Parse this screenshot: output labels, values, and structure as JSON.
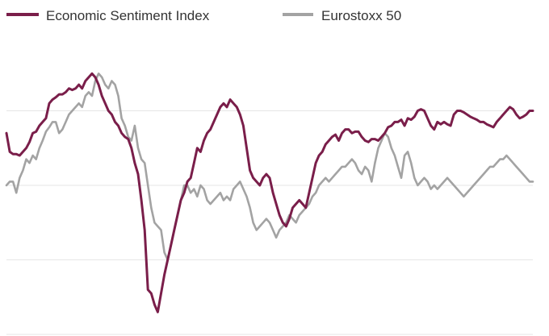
{
  "chart_data": {
    "type": "line",
    "title": "",
    "xlabel": "",
    "ylabel": "",
    "grid": true,
    "legend_position": "top-left",
    "ylim": [
      0,
      4
    ],
    "y_gridlines": [
      0,
      1,
      2,
      3
    ],
    "series": [
      {
        "name": "Economic Sentiment Index",
        "color": "#7a1e4a",
        "x": [
          0,
          1,
          2,
          3,
          4,
          5,
          6,
          7,
          8,
          9,
          10,
          11,
          12,
          13,
          14,
          15,
          16,
          17,
          18,
          19,
          20,
          21,
          22,
          23,
          24,
          25,
          26,
          27,
          28,
          29,
          30,
          31,
          32,
          33,
          34,
          35,
          36,
          37,
          38,
          39,
          40,
          41,
          42,
          43,
          44,
          45,
          46,
          47,
          48,
          49,
          50,
          51,
          52,
          53,
          54,
          55,
          56,
          57,
          58,
          59,
          60,
          61,
          62,
          63,
          64,
          65,
          66,
          67,
          68,
          69,
          70,
          71,
          72,
          73,
          74,
          75,
          76,
          77,
          78,
          79,
          80,
          81,
          82,
          83,
          84,
          85,
          86,
          87,
          88,
          89,
          90,
          91,
          92,
          93,
          94,
          95,
          96,
          97,
          98,
          99,
          100,
          101,
          102,
          103,
          104,
          105,
          106,
          107,
          108,
          109,
          110,
          111,
          112,
          113,
          114,
          115,
          116,
          117,
          118,
          119,
          120,
          121,
          122,
          123,
          124,
          125,
          126,
          127,
          128,
          129,
          130,
          131,
          132,
          133,
          134,
          135,
          136,
          137,
          138,
          139,
          140,
          141,
          142,
          143,
          144,
          145,
          146,
          147,
          148,
          149,
          150,
          151,
          152,
          153,
          154,
          155,
          156,
          157,
          158,
          159,
          160
        ],
        "values": [
          2.7,
          2.45,
          2.42,
          2.42,
          2.4,
          2.45,
          2.5,
          2.58,
          2.7,
          2.72,
          2.8,
          2.85,
          2.9,
          3.1,
          3.15,
          3.18,
          3.22,
          3.22,
          3.25,
          3.3,
          3.28,
          3.3,
          3.35,
          3.3,
          3.4,
          3.45,
          3.5,
          3.45,
          3.35,
          3.2,
          3.1,
          3.0,
          2.95,
          2.85,
          2.8,
          2.7,
          2.65,
          2.62,
          2.5,
          2.3,
          2.15,
          1.8,
          1.4,
          0.6,
          0.55,
          0.4,
          0.3,
          0.55,
          0.8,
          1.0,
          1.2,
          1.4,
          1.6,
          1.8,
          1.9,
          2.05,
          2.1,
          2.3,
          2.5,
          2.45,
          2.6,
          2.7,
          2.75,
          2.85,
          2.95,
          3.05,
          3.1,
          3.05,
          3.15,
          3.1,
          3.05,
          2.95,
          2.8,
          2.5,
          2.2,
          2.1,
          2.05,
          2.0,
          2.1,
          2.15,
          2.1,
          1.9,
          1.75,
          1.6,
          1.5,
          1.45,
          1.55,
          1.7,
          1.75,
          1.8,
          1.75,
          1.7,
          1.9,
          2.1,
          2.3,
          2.4,
          2.45,
          2.55,
          2.6,
          2.65,
          2.68,
          2.6,
          2.7,
          2.75,
          2.75,
          2.7,
          2.72,
          2.72,
          2.65,
          2.6,
          2.58,
          2.62,
          2.62,
          2.6,
          2.65,
          2.7,
          2.78,
          2.8,
          2.85,
          2.85,
          2.88,
          2.8,
          2.9,
          2.88,
          2.92,
          3.0,
          3.02,
          3.0,
          2.9,
          2.8,
          2.75,
          2.85,
          2.82,
          2.85,
          2.82,
          2.8,
          2.95,
          3.0,
          3.0,
          2.98,
          2.95,
          2.92,
          2.9,
          2.88,
          2.85,
          2.85,
          2.82,
          2.8,
          2.78,
          2.85,
          2.9,
          2.95,
          3.0,
          3.05,
          3.02,
          2.95,
          2.9,
          2.92,
          2.95,
          3.0,
          3.0
        ]
      },
      {
        "name": "Eurostoxx 50",
        "color": "#a3a3a3",
        "x": [
          0,
          1,
          2,
          3,
          4,
          5,
          6,
          7,
          8,
          9,
          10,
          11,
          12,
          13,
          14,
          15,
          16,
          17,
          18,
          19,
          20,
          21,
          22,
          23,
          24,
          25,
          26,
          27,
          28,
          29,
          30,
          31,
          32,
          33,
          34,
          35,
          36,
          37,
          38,
          39,
          40,
          41,
          42,
          43,
          44,
          45,
          46,
          47,
          48,
          49,
          50,
          51,
          52,
          53,
          54,
          55,
          56,
          57,
          58,
          59,
          60,
          61,
          62,
          63,
          64,
          65,
          66,
          67,
          68,
          69,
          70,
          71,
          72,
          73,
          74,
          75,
          76,
          77,
          78,
          79,
          80,
          81,
          82,
          83,
          84,
          85,
          86,
          87,
          88,
          89,
          90,
          91,
          92,
          93,
          94,
          95,
          96,
          97,
          98,
          99,
          100,
          101,
          102,
          103,
          104,
          105,
          106,
          107,
          108,
          109,
          110,
          111,
          112,
          113,
          114,
          115,
          116,
          117,
          118,
          119,
          120,
          121,
          122,
          123,
          124,
          125,
          126,
          127,
          128,
          129,
          130,
          131,
          132,
          133,
          134,
          135,
          136,
          137,
          138,
          139,
          140,
          141,
          142,
          143,
          144,
          145,
          146,
          147,
          148,
          149,
          150,
          151,
          152,
          153,
          154,
          155,
          156,
          157,
          158,
          159,
          160
        ],
        "values": [
          2.0,
          2.05,
          2.05,
          1.9,
          2.1,
          2.2,
          2.35,
          2.3,
          2.4,
          2.35,
          2.5,
          2.6,
          2.72,
          2.78,
          2.85,
          2.85,
          2.7,
          2.75,
          2.85,
          2.95,
          3.0,
          3.05,
          3.1,
          3.05,
          3.2,
          3.25,
          3.2,
          3.4,
          3.5,
          3.45,
          3.35,
          3.3,
          3.4,
          3.35,
          3.2,
          2.9,
          2.8,
          2.65,
          2.6,
          2.8,
          2.5,
          2.35,
          2.3,
          2.0,
          1.7,
          1.5,
          1.45,
          1.4,
          1.1,
          1.0,
          1.2,
          1.4,
          1.6,
          1.8,
          2.0,
          2.0,
          1.9,
          1.95,
          1.85,
          2.0,
          1.95,
          1.8,
          1.75,
          1.8,
          1.85,
          1.9,
          1.8,
          1.85,
          1.8,
          1.95,
          2.0,
          2.05,
          1.95,
          1.85,
          1.7,
          1.5,
          1.4,
          1.45,
          1.5,
          1.55,
          1.5,
          1.4,
          1.3,
          1.4,
          1.45,
          1.5,
          1.6,
          1.55,
          1.5,
          1.6,
          1.65,
          1.7,
          1.75,
          1.85,
          1.9,
          2.0,
          2.05,
          2.1,
          2.05,
          2.1,
          2.15,
          2.2,
          2.25,
          2.25,
          2.3,
          2.35,
          2.3,
          2.2,
          2.15,
          2.25,
          2.2,
          2.05,
          2.3,
          2.5,
          2.6,
          2.7,
          2.65,
          2.5,
          2.4,
          2.25,
          2.1,
          2.4,
          2.45,
          2.3,
          2.1,
          2.0,
          2.05,
          2.1,
          2.05,
          1.95,
          2.0,
          1.95,
          2.0,
          2.05,
          2.1,
          2.05,
          2.0,
          1.95,
          1.9,
          1.85,
          1.9,
          1.95,
          2.0,
          2.05,
          2.1,
          2.15,
          2.2,
          2.25,
          2.25,
          2.3,
          2.35,
          2.35,
          2.4,
          2.35,
          2.3,
          2.25,
          2.2,
          2.15,
          2.1,
          2.05,
          2.05
        ]
      }
    ]
  }
}
